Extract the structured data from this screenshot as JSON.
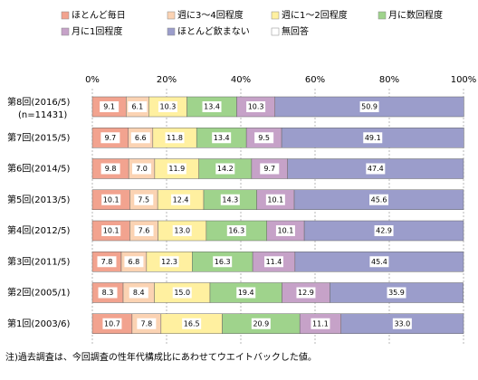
{
  "chart_data": {
    "type": "stacked-barh",
    "categories": [
      "第8回(2016/5)",
      "第7回(2015/5)",
      "第6回(2014/5)",
      "第5回(2013/5)",
      "第4回(2012/5)",
      "第3回(2011/5)",
      "第2回(2005/1)",
      "第1回(2003/6)"
    ],
    "category_note": "(n=11431)",
    "series": [
      {
        "name": "ほとんど毎日",
        "color": "#f2a38f",
        "values": [
          9.1,
          9.7,
          9.8,
          10.1,
          10.1,
          7.8,
          8.3,
          10.7
        ]
      },
      {
        "name": "週に3～4回程度",
        "color": "#fbd3b3",
        "values": [
          6.1,
          6.6,
          7.0,
          7.5,
          7.6,
          6.8,
          8.4,
          7.8
        ],
        "value_labels": [
          "6.1",
          "6.6",
          "7.0",
          "7.5",
          "7.6",
          "6.8",
          "8.4",
          "7.8"
        ]
      },
      {
        "name": "週に1～2回程度",
        "color": "#fff0a0",
        "values": [
          10.3,
          11.8,
          11.9,
          12.4,
          13.0,
          12.3,
          15.0,
          16.5
        ],
        "value_labels": [
          "10.3",
          "11.8",
          "11.9",
          "12.4",
          "13.0",
          "12.3",
          "15.0",
          "16.5"
        ]
      },
      {
        "name": "月に数回程度",
        "color": "#9fd38c",
        "values": [
          13.4,
          13.4,
          14.2,
          14.3,
          16.3,
          16.3,
          19.4,
          20.9
        ]
      },
      {
        "name": "月に1回程度",
        "color": "#c6a2c8",
        "values": [
          10.3,
          9.5,
          9.7,
          10.1,
          10.1,
          11.4,
          12.9,
          11.1
        ]
      },
      {
        "name": "ほとんど飲まない",
        "color": "#9b9dcb",
        "values": [
          50.9,
          49.1,
          47.4,
          45.6,
          42.9,
          45.4,
          35.9,
          33.0
        ],
        "value_labels": [
          "50.9",
          "49.1",
          "47.4",
          "45.6",
          "42.9",
          "45.4",
          "35.9",
          "33.0"
        ]
      },
      {
        "name": "無回答",
        "color": "#ffffff",
        "values": [
          0,
          0,
          0,
          0,
          0,
          0,
          0,
          0
        ],
        "hide_labels": true
      }
    ],
    "xlim": [
      0,
      100
    ],
    "xticks": [
      {
        "value": 0,
        "label": "0%"
      },
      {
        "value": 20,
        "label": "20%"
      },
      {
        "value": 40,
        "label": "40%"
      },
      {
        "value": 60,
        "label": "60%"
      },
      {
        "value": 80,
        "label": "80%"
      },
      {
        "value": 100,
        "label": "100%"
      }
    ],
    "grid": true,
    "footnote": "注)過去調査は、今回調査の性年代構成比にあわせてウエイトバックした値。"
  }
}
